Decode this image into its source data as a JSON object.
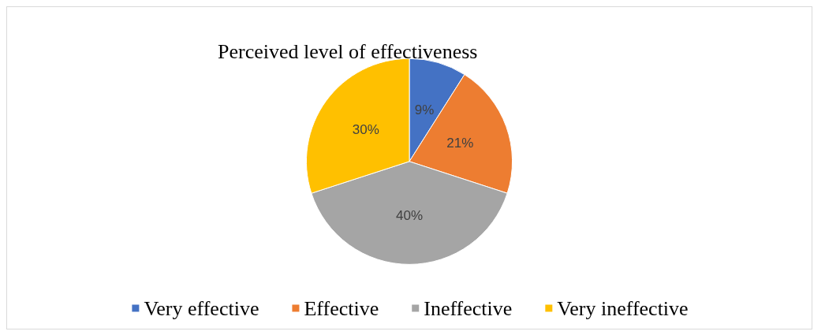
{
  "chart_data": {
    "type": "pie",
    "title": "Perceived level of effectiveness",
    "categories": [
      "Very effective",
      "Effective",
      "Ineffective",
      "Very ineffective"
    ],
    "values": [
      9,
      21,
      40,
      30
    ],
    "value_labels": [
      "9%",
      "21%",
      "40%",
      "30%"
    ],
    "colors": [
      "#4472c4",
      "#ed7d31",
      "#a5a5a5",
      "#ffc000"
    ],
    "legend": "bottom"
  }
}
